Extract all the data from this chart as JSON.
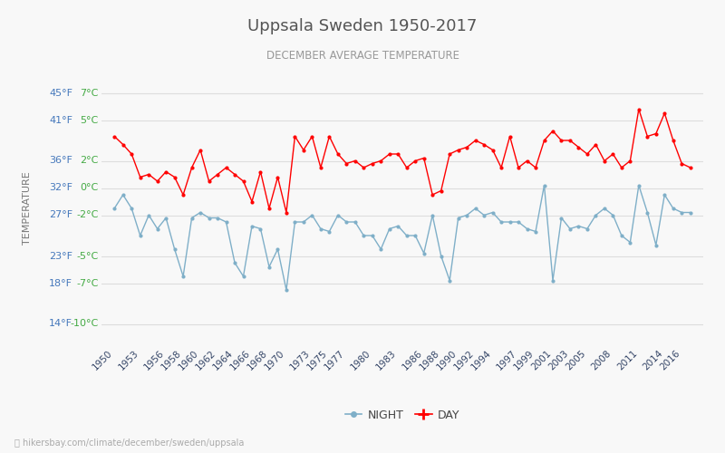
{
  "title": "Uppsala Sweden 1950-2017",
  "subtitle": "DECEMBER AVERAGE TEMPERATURE",
  "ylabel": "TEMPERATURE",
  "footer": "hikersbay.com/climate/december/sweden/uppsala",
  "years": [
    1950,
    1951,
    1952,
    1953,
    1954,
    1955,
    1956,
    1957,
    1958,
    1959,
    1960,
    1961,
    1962,
    1963,
    1964,
    1965,
    1966,
    1967,
    1968,
    1969,
    1970,
    1971,
    1972,
    1973,
    1974,
    1975,
    1976,
    1977,
    1978,
    1979,
    1980,
    1981,
    1982,
    1983,
    1984,
    1985,
    1986,
    1987,
    1988,
    1989,
    1990,
    1991,
    1992,
    1993,
    1994,
    1995,
    1996,
    1997,
    1998,
    1999,
    2000,
    2001,
    2002,
    2003,
    2004,
    2005,
    2006,
    2007,
    2008,
    2009,
    2010,
    2011,
    2012,
    2013,
    2014,
    2015,
    2016,
    2017
  ],
  "day": [
    3.8,
    3.2,
    2.5,
    0.8,
    1.0,
    0.5,
    1.2,
    0.8,
    -0.5,
    1.5,
    2.8,
    0.5,
    1.0,
    1.5,
    1.0,
    0.5,
    -1.0,
    1.2,
    -1.5,
    0.8,
    -1.8,
    3.8,
    2.8,
    3.8,
    1.5,
    3.8,
    2.5,
    1.8,
    2.0,
    1.5,
    1.8,
    2.0,
    2.5,
    2.5,
    1.5,
    2.0,
    2.2,
    -0.5,
    -0.2,
    2.5,
    2.8,
    3.0,
    3.5,
    3.2,
    2.8,
    1.5,
    3.8,
    1.5,
    2.0,
    1.5,
    3.5,
    4.2,
    3.5,
    3.5,
    3.0,
    2.5,
    3.2,
    2.0,
    2.5,
    1.5,
    2.0,
    5.8,
    3.8,
    4.0,
    5.5,
    3.5,
    1.8,
    1.5
  ],
  "night": [
    -1.5,
    -0.5,
    -1.5,
    -3.5,
    -2.0,
    -3.0,
    -2.2,
    -4.5,
    -6.5,
    -2.2,
    -1.8,
    -2.2,
    -2.2,
    -2.5,
    -5.5,
    -6.5,
    -2.8,
    -3.0,
    -5.8,
    -4.5,
    -7.5,
    -2.5,
    -2.5,
    -2.0,
    -3.0,
    -3.2,
    -2.0,
    -2.5,
    -2.5,
    -3.5,
    -3.5,
    -4.5,
    -3.0,
    -2.8,
    -3.5,
    -3.5,
    -4.8,
    -2.0,
    -5.0,
    -6.8,
    -2.2,
    -2.0,
    -1.5,
    -2.0,
    -1.8,
    -2.5,
    -2.5,
    -2.5,
    -3.0,
    -3.2,
    0.2,
    -6.8,
    -2.2,
    -3.0,
    -2.8,
    -3.0,
    -2.0,
    -1.5,
    -2.0,
    -3.5,
    -4.0,
    0.2,
    -1.8,
    -4.2,
    -0.5,
    -1.5,
    -1.8,
    -1.8
  ],
  "day_color": "#ff0000",
  "night_color": "#7fafc8",
  "title_color": "#555555",
  "subtitle_color": "#999999",
  "ylabel_color": "#777777",
  "tick_color_blue": "#4477bb",
  "tick_color_green": "#44aa44",
  "yticks_c": [
    -10,
    -7,
    -5,
    -2,
    0,
    2,
    5,
    7
  ],
  "yticks_f": [
    14,
    18,
    23,
    27,
    32,
    36,
    41,
    45
  ],
  "xtick_labels": [
    "1950",
    "1953",
    "1956",
    "1958",
    "1960",
    "1962",
    "1964",
    "1966",
    "1968",
    "1970",
    "1973",
    "1975",
    "1977",
    "1980",
    "1983",
    "1986",
    "1988",
    "1990",
    "1992",
    "1994",
    "1997",
    "1999",
    "2001",
    "2003",
    "2005",
    "2008",
    "2011",
    "2014",
    "2016"
  ],
  "ylim": [
    -11.5,
    8.5
  ],
  "xlim": [
    1948.5,
    2018.5
  ],
  "background_color": "#f8f8f8",
  "grid_color": "#dddddd",
  "fig_width": 8.0,
  "fig_height": 5.0,
  "dpi": 100
}
